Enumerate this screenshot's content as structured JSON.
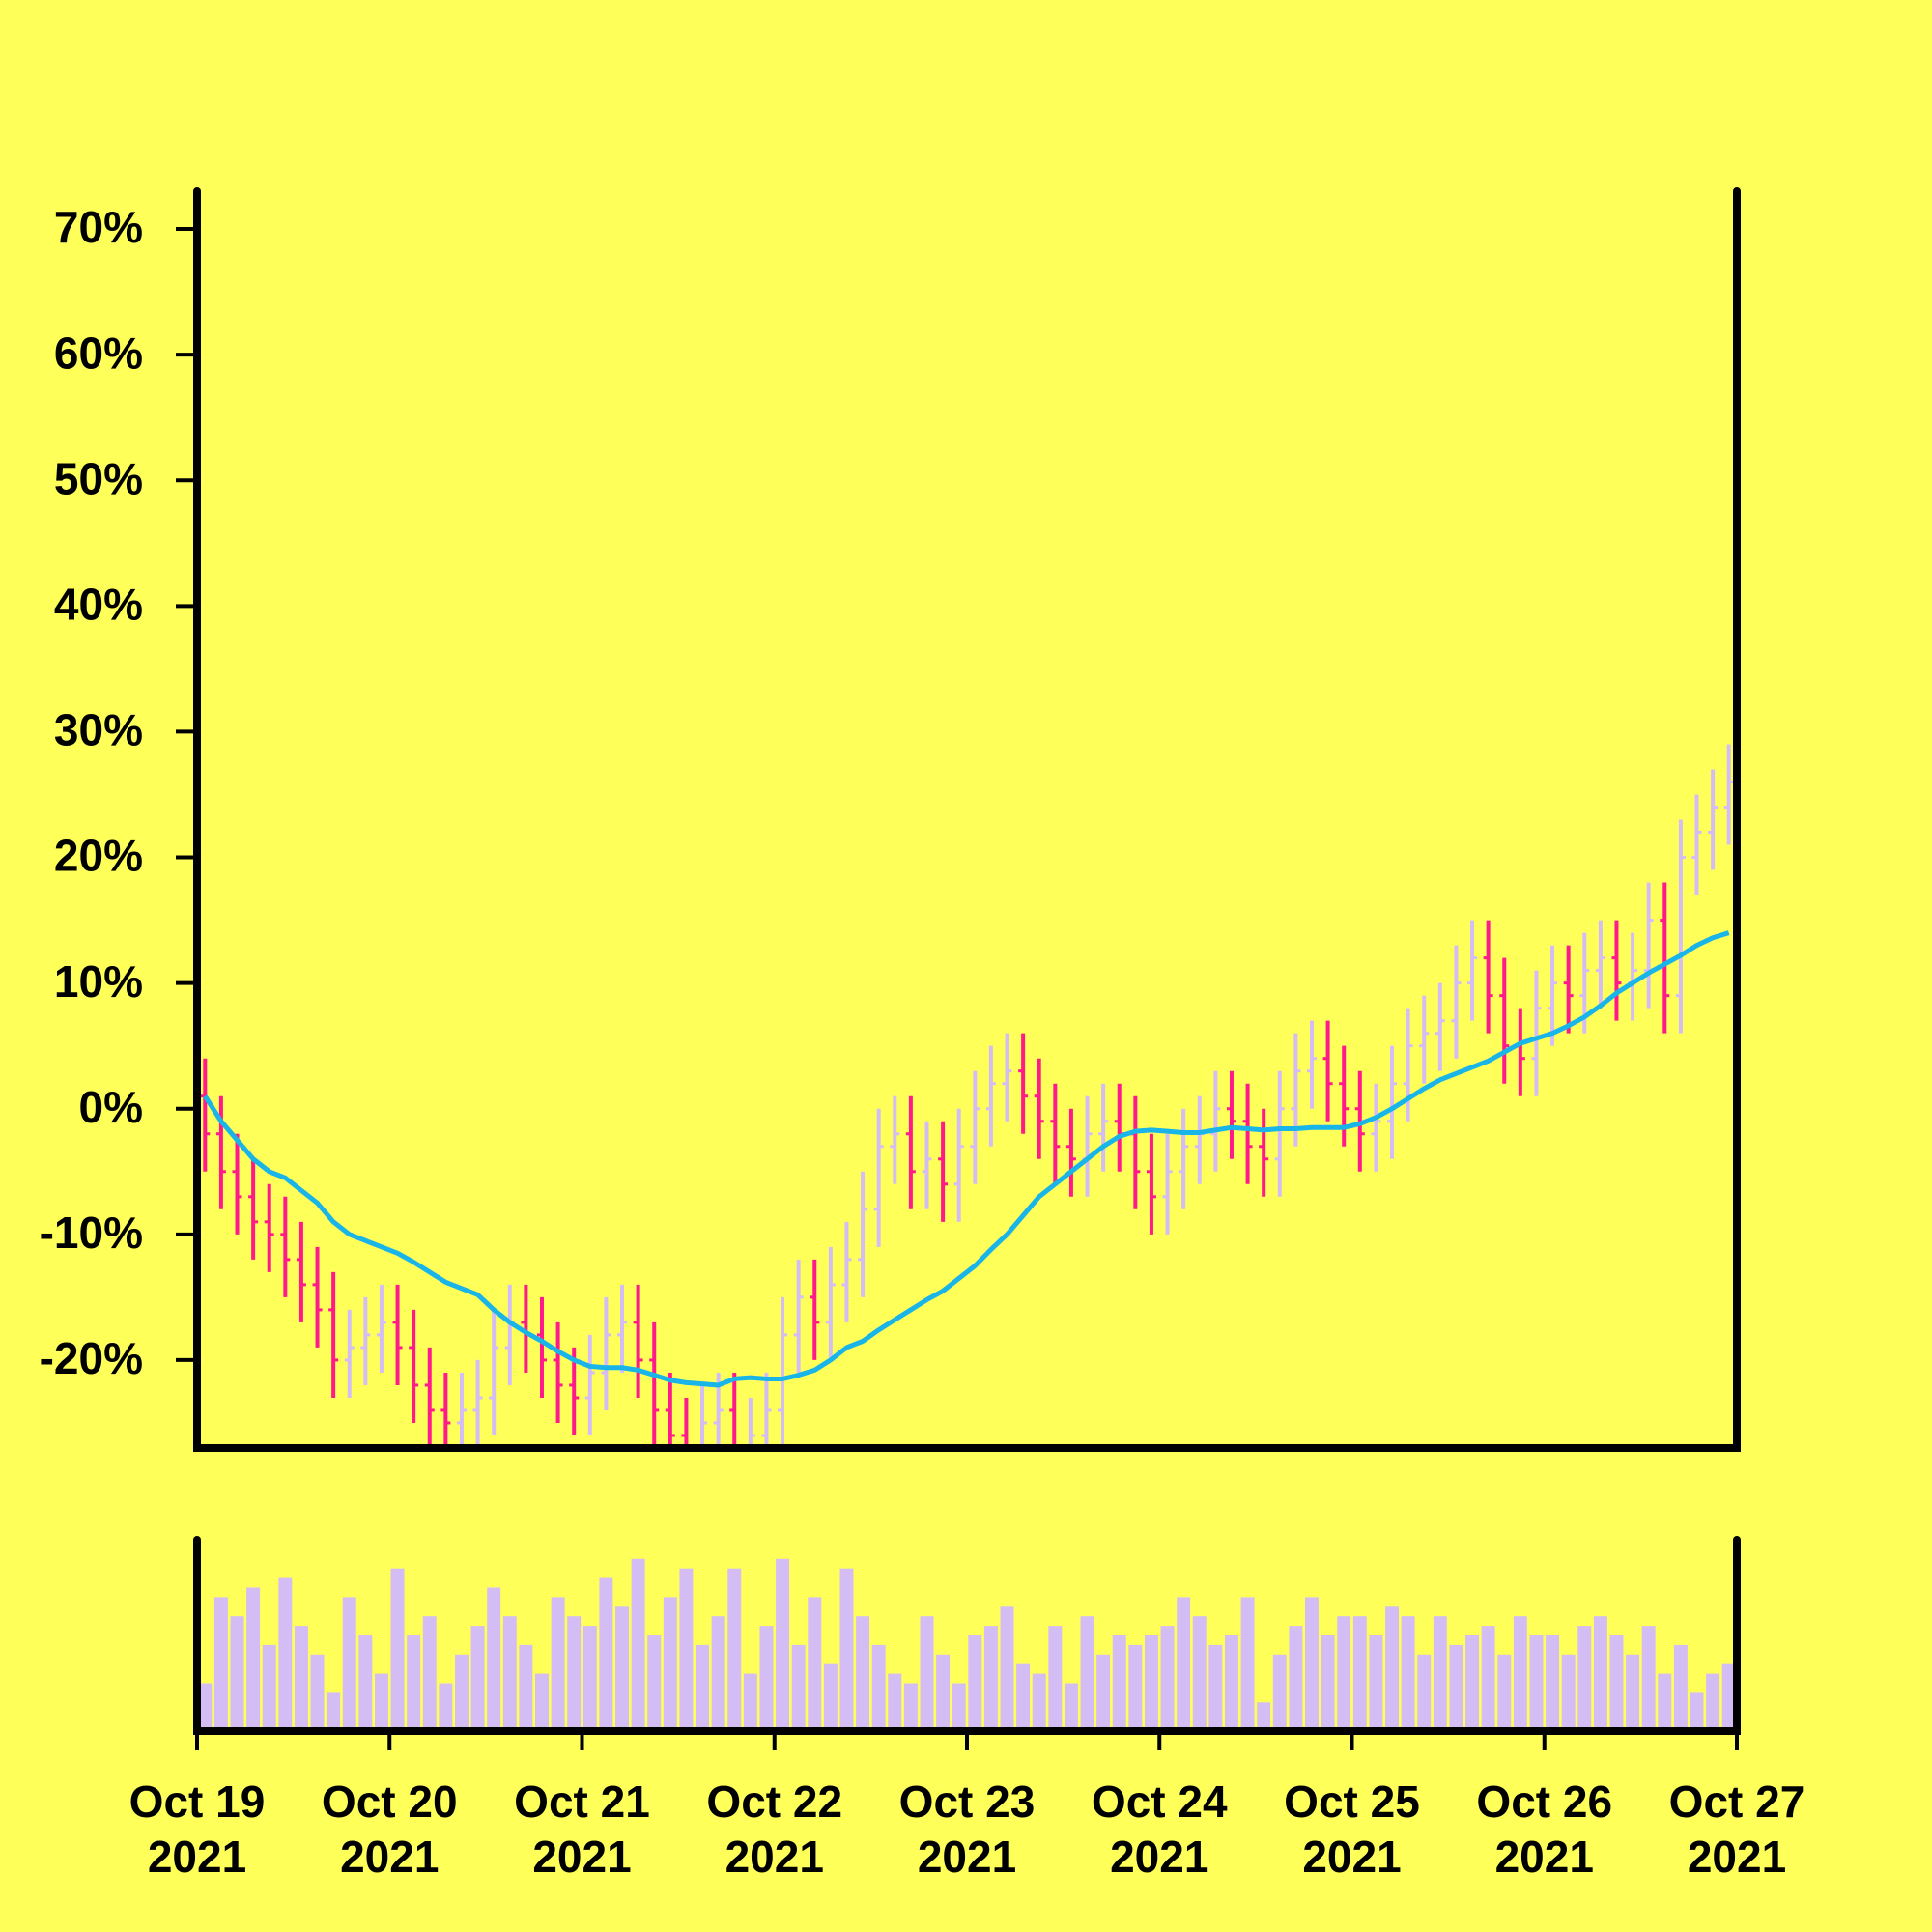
{
  "chart_data": {
    "type": "ohlc",
    "background": "#ffff5a",
    "up_color": "#d4bcf5",
    "down_color": "#ff1a8c",
    "ma_color": "#19b4e8",
    "volume_color": "#d4bcf5",
    "ylim": [
      -27,
      73
    ],
    "yticks": [
      {
        "value": -20,
        "label": "-20%"
      },
      {
        "value": -10,
        "label": "-10%"
      },
      {
        "value": 0,
        "label": "0%"
      },
      {
        "value": 10,
        "label": "10%"
      },
      {
        "value": 20,
        "label": "20%"
      },
      {
        "value": 30,
        "label": "30%"
      },
      {
        "value": 40,
        "label": "40%"
      },
      {
        "value": 50,
        "label": "50%"
      },
      {
        "value": 60,
        "label": "60%"
      },
      {
        "value": 70,
        "label": "70%"
      }
    ],
    "xtick_labels": [
      [
        "Oct 19",
        "2021"
      ],
      [
        "Oct 20",
        "2021"
      ],
      [
        "Oct 21",
        "2021"
      ],
      [
        "Oct 22",
        "2021"
      ],
      [
        "Oct 23",
        "2021"
      ],
      [
        "Oct 24",
        "2021"
      ],
      [
        "Oct 25",
        "2021"
      ],
      [
        "Oct 26",
        "2021"
      ],
      [
        "Oct 27",
        "2021"
      ]
    ],
    "open": [
      1,
      -2,
      -5,
      -7,
      -9,
      -10,
      -12,
      -14,
      -16,
      -20,
      -19,
      -18,
      -17,
      -19,
      -22,
      -24,
      -25,
      -24,
      -23,
      -19,
      -17,
      -18,
      -20,
      -22,
      -23,
      -21,
      -18,
      -17,
      -20,
      -24,
      -26,
      -27,
      -25,
      -24,
      -28,
      -26,
      -24,
      -18,
      -15,
      -17,
      -14,
      -12,
      -8,
      -3,
      -2,
      -5,
      -4,
      -6,
      -3,
      0,
      2,
      3,
      1,
      -1,
      -3,
      -4,
      -2,
      -1,
      -2,
      -5,
      -7,
      -5,
      -3,
      -2,
      0,
      -1,
      -3,
      -4,
      0,
      3,
      4,
      2,
      0,
      -2,
      -1,
      2,
      5,
      6,
      7,
      10,
      12,
      9,
      5,
      4,
      8,
      10,
      9,
      11,
      12,
      10,
      11,
      15,
      9,
      20,
      22,
      24
    ],
    "high": [
      4,
      1,
      -2,
      -4,
      -6,
      -7,
      -9,
      -11,
      -13,
      -16,
      -15,
      -14,
      -14,
      -16,
      -19,
      -21,
      -21,
      -20,
      -16,
      -14,
      -14,
      -15,
      -17,
      -19,
      -18,
      -15,
      -14,
      -14,
      -17,
      -21,
      -23,
      -22,
      -21,
      -21,
      -23,
      -21,
      -15,
      -12,
      -12,
      -11,
      -9,
      -5,
      0,
      1,
      1,
      -1,
      -1,
      0,
      3,
      5,
      6,
      6,
      4,
      2,
      0,
      1,
      2,
      2,
      1,
      -2,
      -2,
      0,
      1,
      3,
      3,
      2,
      0,
      3,
      6,
      7,
      7,
      5,
      3,
      2,
      5,
      8,
      9,
      10,
      13,
      15,
      15,
      12,
      8,
      11,
      13,
      13,
      14,
      15,
      15,
      14,
      18,
      18,
      23,
      25,
      27,
      29
    ],
    "low": [
      -5,
      -8,
      -10,
      -12,
      -13,
      -15,
      -17,
      -19,
      -23,
      -23,
      -22,
      -21,
      -22,
      -25,
      -27,
      -28,
      -28,
      -27,
      -26,
      -22,
      -21,
      -23,
      -25,
      -26,
      -26,
      -24,
      -21,
      -23,
      -27,
      -29,
      -30,
      -30,
      -28,
      -31,
      -31,
      -29,
      -27,
      -21,
      -20,
      -20,
      -17,
      -15,
      -11,
      -6,
      -8,
      -8,
      -9,
      -9,
      -6,
      -3,
      -1,
      -2,
      -4,
      -6,
      -7,
      -7,
      -5,
      -5,
      -8,
      -10,
      -10,
      -8,
      -6,
      -5,
      -4,
      -6,
      -7,
      -7,
      -3,
      0,
      -1,
      -3,
      -5,
      -5,
      -4,
      -1,
      2,
      3,
      4,
      7,
      6,
      2,
      1,
      1,
      5,
      6,
      6,
      8,
      7,
      7,
      8,
      6,
      6,
      17,
      19,
      21
    ],
    "close": [
      -2,
      -5,
      -7,
      -9,
      -10,
      -12,
      -14,
      -16,
      -20,
      -19,
      -18,
      -17,
      -19,
      -22,
      -24,
      -25,
      -24,
      -23,
      -19,
      -17,
      -18,
      -20,
      -22,
      -23,
      -21,
      -18,
      -17,
      -20,
      -24,
      -26,
      -27,
      -25,
      -24,
      -28,
      -26,
      -24,
      -18,
      -15,
      -17,
      -14,
      -12,
      -8,
      -3,
      -2,
      -5,
      -4,
      -6,
      -3,
      0,
      2,
      3,
      1,
      -1,
      -3,
      -4,
      -2,
      -1,
      -2,
      -5,
      -7,
      -5,
      -3,
      -2,
      0,
      -1,
      -3,
      -4,
      0,
      3,
      4,
      2,
      0,
      -2,
      -1,
      2,
      5,
      6,
      7,
      10,
      12,
      9,
      5,
      4,
      8,
      10,
      9,
      11,
      12,
      10,
      11,
      15,
      9,
      20,
      22,
      24,
      26
    ],
    "moving_average": [
      1,
      -1,
      -2.5,
      -4,
      -5,
      -5.5,
      -6.5,
      -7.5,
      -9,
      -10,
      -10.5,
      -11,
      -11.5,
      -12.2,
      -13,
      -13.8,
      -14.3,
      -14.8,
      -16,
      -17,
      -17.8,
      -18.5,
      -19.3,
      -20,
      -20.5,
      -20.6,
      -20.6,
      -20.8,
      -21.2,
      -21.6,
      -21.8,
      -21.9,
      -22,
      -21.5,
      -21.4,
      -21.5,
      -21.5,
      -21.2,
      -20.8,
      -20,
      -19,
      -18.5,
      -17.6,
      -16.8,
      -16,
      -15.2,
      -14.5,
      -13.5,
      -12.5,
      -11.2,
      -10,
      -8.5,
      -7,
      -6,
      -5,
      -4,
      -3,
      -2.2,
      -1.8,
      -1.7,
      -1.8,
      -1.9,
      -1.9,
      -1.7,
      -1.5,
      -1.6,
      -1.7,
      -1.6,
      -1.6,
      -1.5,
      -1.5,
      -1.5,
      -1.2,
      -0.7,
      0,
      0.8,
      1.6,
      2.3,
      2.8,
      3.3,
      3.8,
      4.5,
      5.2,
      5.6,
      6,
      6.6,
      7.3,
      8.2,
      9.2,
      10,
      10.8,
      11.5,
      12.2,
      13,
      13.6,
      14
    ],
    "volume_lim": [
      0,
      100
    ],
    "volume": [
      25,
      70,
      60,
      75,
      45,
      80,
      55,
      40,
      20,
      70,
      50,
      30,
      85,
      50,
      60,
      25,
      40,
      55,
      75,
      60,
      45,
      30,
      70,
      60,
      55,
      80,
      65,
      90,
      50,
      70,
      85,
      45,
      60,
      85,
      30,
      55,
      90,
      45,
      70,
      35,
      85,
      60,
      45,
      30,
      25,
      60,
      40,
      25,
      50,
      55,
      65,
      35,
      30,
      55,
      25,
      60,
      40,
      50,
      45,
      50,
      55,
      70,
      60,
      45,
      50,
      70,
      15,
      40,
      55,
      70,
      50,
      60,
      60,
      50,
      65,
      60,
      40,
      60,
      45,
      50,
      55,
      40,
      60,
      50,
      50,
      40,
      55,
      60,
      50,
      40,
      55,
      30,
      45,
      20,
      30,
      35
    ]
  }
}
